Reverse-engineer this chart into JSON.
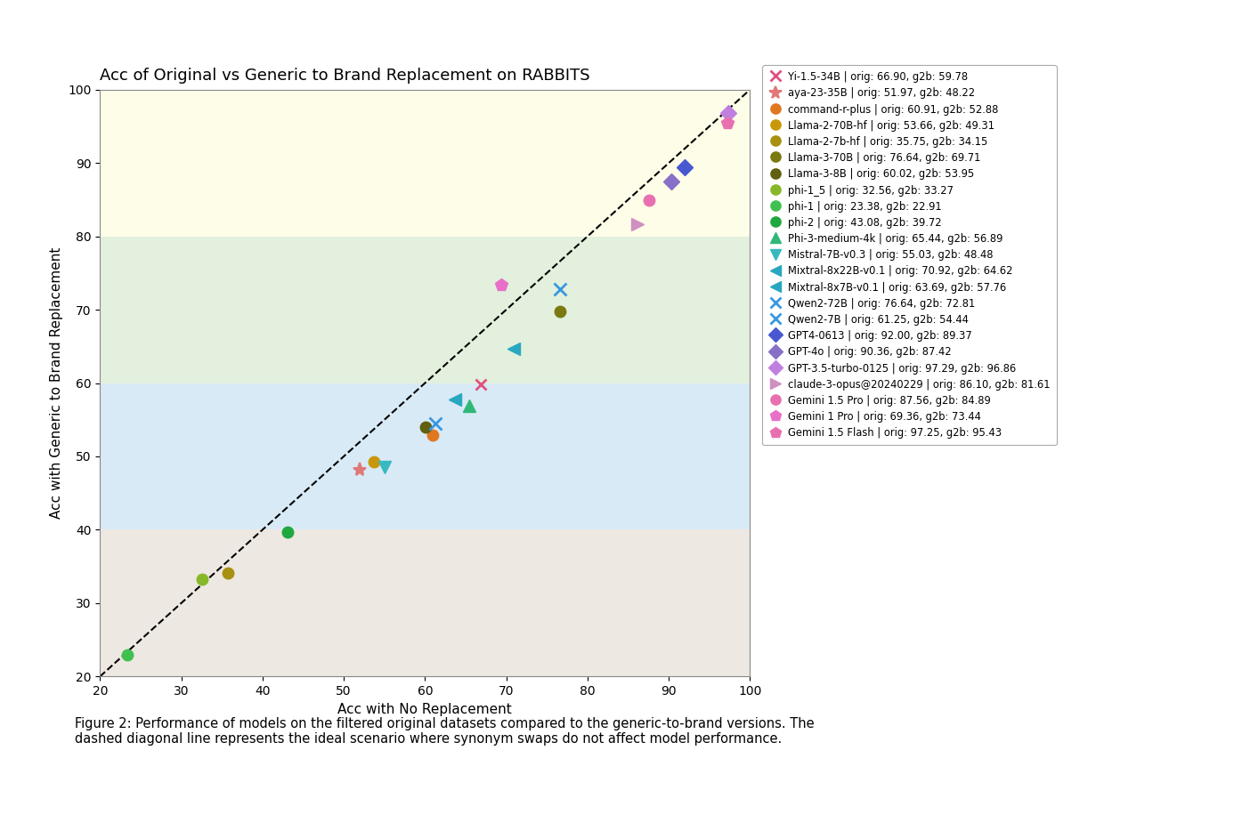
{
  "title": "Acc of Original vs Generic to Brand Replacement on RABBITS",
  "xlabel": "Acc with No Replacement",
  "ylabel": "Acc with Generic to Brand Replacement",
  "xlim": [
    20,
    100
  ],
  "ylim": [
    20,
    100
  ],
  "xticks": [
    20,
    30,
    40,
    50,
    60,
    70,
    80,
    90,
    100
  ],
  "yticks": [
    20,
    30,
    40,
    50,
    60,
    70,
    80,
    90,
    100
  ],
  "caption": "Figure 2: Performance of models on the filtered original datasets compared to the generic-to-brand versions. The\ndashed diagonal line represents the ideal scenario where synonym swaps do not affect model performance.",
  "zone_above80": "#fdfde8",
  "zone_60_80": "#e2f0dd",
  "zone_40_60": "#d8eaf5",
  "zone_below40": "#ede8e2",
  "models": [
    {
      "name": "Yi-1.5-34B | orig: 66.90, g2b: 59.78",
      "orig": 66.9,
      "g2b": 59.78,
      "color": "#e05080",
      "marker": "x",
      "ms": 9,
      "mew": 2.0
    },
    {
      "name": "aya-23-35B | orig: 51.97, g2b: 48.22",
      "orig": 51.97,
      "g2b": 48.22,
      "color": "#e07878",
      "marker": "*",
      "ms": 11,
      "mew": 1.5
    },
    {
      "name": "command-r-plus | orig: 60.91, g2b: 52.88",
      "orig": 60.91,
      "g2b": 52.88,
      "color": "#e07820",
      "marker": "o",
      "ms": 9,
      "mew": 1.0
    },
    {
      "name": "Llama-2-70B-hf | orig: 53.66, g2b: 49.31",
      "orig": 53.66,
      "g2b": 49.31,
      "color": "#c8980a",
      "marker": "o",
      "ms": 9,
      "mew": 1.0
    },
    {
      "name": "Llama-2-7b-hf | orig: 35.75, g2b: 34.15",
      "orig": 35.75,
      "g2b": 34.15,
      "color": "#a89010",
      "marker": "o",
      "ms": 9,
      "mew": 1.0
    },
    {
      "name": "Llama-3-70B | orig: 76.64, g2b: 69.71",
      "orig": 76.64,
      "g2b": 69.71,
      "color": "#7a7a10",
      "marker": "o",
      "ms": 9,
      "mew": 1.0
    },
    {
      "name": "Llama-3-8B | orig: 60.02, g2b: 53.95",
      "orig": 60.02,
      "g2b": 53.95,
      "color": "#606010",
      "marker": "o",
      "ms": 9,
      "mew": 1.0
    },
    {
      "name": "phi-1_5 | orig: 32.56, g2b: 33.27",
      "orig": 32.56,
      "g2b": 33.27,
      "color": "#88b828",
      "marker": "o",
      "ms": 9,
      "mew": 1.0
    },
    {
      "name": "phi-1 | orig: 23.38, g2b: 22.91",
      "orig": 23.38,
      "g2b": 22.91,
      "color": "#40c050",
      "marker": "o",
      "ms": 9,
      "mew": 1.0
    },
    {
      "name": "phi-2 | orig: 43.08, g2b: 39.72",
      "orig": 43.08,
      "g2b": 39.72,
      "color": "#20a840",
      "marker": "o",
      "ms": 9,
      "mew": 1.0
    },
    {
      "name": "Phi-3-medium-4k | orig: 65.44, g2b: 56.89",
      "orig": 65.44,
      "g2b": 56.89,
      "color": "#30b878",
      "marker": "^",
      "ms": 10,
      "mew": 1.0
    },
    {
      "name": "Mistral-7B-v0.3 | orig: 55.03, g2b: 48.48",
      "orig": 55.03,
      "g2b": 48.48,
      "color": "#38b8c0",
      "marker": "v",
      "ms": 10,
      "mew": 1.0
    },
    {
      "name": "Mixtral-8x22B-v0.1 | orig: 70.92, g2b: 64.62",
      "orig": 70.92,
      "g2b": 64.62,
      "color": "#28a8c0",
      "marker": "<",
      "ms": 10,
      "mew": 1.0
    },
    {
      "name": "Mixtral-8x7B-v0.1 | orig: 63.69, g2b: 57.76",
      "orig": 63.69,
      "g2b": 57.76,
      "color": "#28a8c0",
      "marker": "<",
      "ms": 10,
      "mew": 1.0
    },
    {
      "name": "Qwen2-72B | orig: 76.64, g2b: 72.81",
      "orig": 76.64,
      "g2b": 72.81,
      "color": "#3898e0",
      "marker": "x",
      "ms": 10,
      "mew": 2.0
    },
    {
      "name": "Qwen2-7B | orig: 61.25, g2b: 54.44",
      "orig": 61.25,
      "g2b": 54.44,
      "color": "#3898e0",
      "marker": "x",
      "ms": 10,
      "mew": 2.0
    },
    {
      "name": "GPT4-0613 | orig: 92.00, g2b: 89.37",
      "orig": 92.0,
      "g2b": 89.37,
      "color": "#4858d0",
      "marker": "D",
      "ms": 9,
      "mew": 1.0
    },
    {
      "name": "GPT-4o | orig: 90.36, g2b: 87.42",
      "orig": 90.36,
      "g2b": 87.42,
      "color": "#8870c8",
      "marker": "D",
      "ms": 9,
      "mew": 1.0
    },
    {
      "name": "GPT-3.5-turbo-0125 | orig: 97.29, g2b: 96.86",
      "orig": 97.29,
      "g2b": 96.86,
      "color": "#c080e0",
      "marker": "D",
      "ms": 9,
      "mew": 1.0
    },
    {
      "name": "claude-3-opus@20240229 | orig: 86.10, g2b: 81.61",
      "orig": 86.1,
      "g2b": 81.61,
      "color": "#d090c0",
      "marker": ">",
      "ms": 10,
      "mew": 1.0
    },
    {
      "name": "Gemini 1.5 Pro | orig: 87.56, g2b: 84.89",
      "orig": 87.56,
      "g2b": 84.89,
      "color": "#e870b0",
      "marker": "o",
      "ms": 9,
      "mew": 1.0
    },
    {
      "name": "Gemini 1 Pro | orig: 69.36, g2b: 73.44",
      "orig": 69.36,
      "g2b": 73.44,
      "color": "#e870c8",
      "marker": "p",
      "ms": 10,
      "mew": 1.0
    },
    {
      "name": "Gemini 1.5 Flash | orig: 97.25, g2b: 95.43",
      "orig": 97.25,
      "g2b": 95.43,
      "color": "#e870b0",
      "marker": "p",
      "ms": 10,
      "mew": 1.0
    }
  ]
}
